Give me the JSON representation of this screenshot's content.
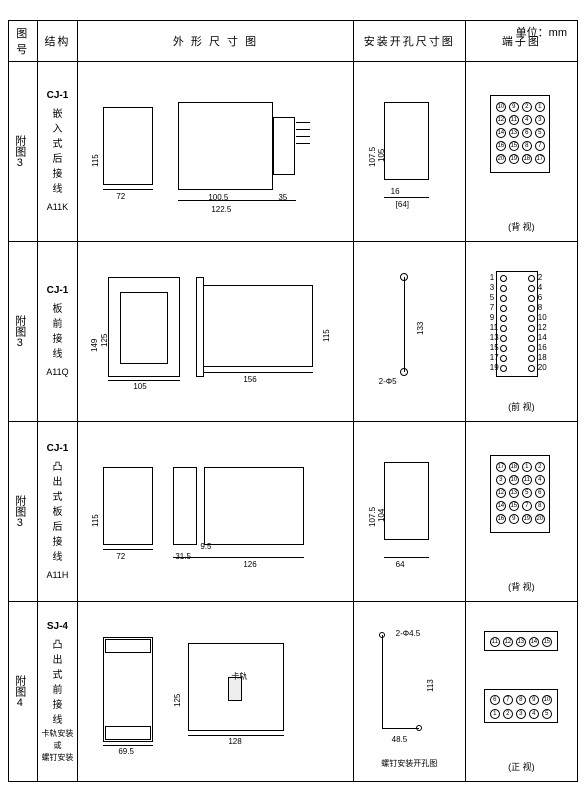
{
  "unit_text": "单位：mm",
  "headers": {
    "fig_no": "图号",
    "structure": "结构",
    "outline": "外 形 尺 寸 图",
    "mounting": "安装开孔尺寸图",
    "terminal": "端子图"
  },
  "rows": [
    {
      "fig_no": "附图3",
      "model_id": "CJ-1",
      "desc_lines": [
        "嵌",
        "入",
        "式",
        "后",
        "接",
        "线"
      ],
      "model_code": "A11K",
      "outline_dims": {
        "front_h": "115",
        "front_w": "72",
        "side_w1": "100.5",
        "side_w2": "122.5",
        "side_tail": "35"
      },
      "mount_dims": {
        "h1": "107.5",
        "h2": "105",
        "w1": "16",
        "w2": "[64]"
      },
      "terminal": {
        "view": "(背 视)",
        "circles": [
          "10",
          "9",
          "2",
          "1",
          "12",
          "11",
          "4",
          "3",
          "14",
          "13",
          "6",
          "5",
          "16",
          "15",
          "8",
          "7",
          "20",
          "19",
          "18",
          "17"
        ]
      }
    },
    {
      "fig_no": "附图3",
      "model_id": "CJ-1",
      "desc_lines": [
        "板",
        "前",
        "接",
        "线"
      ],
      "model_code": "A11Q",
      "outline_dims": {
        "front_h1": "149",
        "front_h2": "125",
        "front_w": "105",
        "side_w": "156",
        "side_h": "115"
      },
      "mount_dims": {
        "h": "133",
        "hole": "2-Φ5"
      },
      "terminal": {
        "view": "(前 视)",
        "labels": [
          "1",
          "2",
          "3",
          "4",
          "5",
          "6",
          "7",
          "8",
          "9",
          "10",
          "11",
          "12",
          "13",
          "14",
          "15",
          "16",
          "17",
          "18",
          "19",
          "20"
        ]
      }
    },
    {
      "fig_no": "附图3",
      "model_id": "CJ-1",
      "desc_lines": [
        "凸",
        "出",
        "式",
        "板",
        "后",
        "接",
        "线"
      ],
      "model_code": "A11H",
      "outline_dims": {
        "front_h": "115",
        "front_w": "72",
        "mid": "31.5",
        "gap": "9.5",
        "side_w": "126"
      },
      "mount_dims": {
        "h1": "107.5",
        "h2": "104",
        "w": "64"
      },
      "terminal": {
        "view": "(背 视)",
        "circles": [
          "17",
          "18",
          "1",
          "2",
          "3",
          "10",
          "11",
          "4",
          "12",
          "13",
          "5",
          "6",
          "14",
          "15",
          "7",
          "8",
          "16",
          "9",
          "19",
          "20"
        ]
      }
    },
    {
      "fig_no": "附图4",
      "model_id": "SJ-4",
      "desc_lines": [
        "凸",
        "出",
        "式",
        "前",
        "接",
        "线"
      ],
      "model_code": "卡轨安装 或 螺钉安装",
      "outline_dims": {
        "front_w": "69.5",
        "front_h": "125",
        "side_w": "128",
        "label": "卡轨"
      },
      "mount_dims": {
        "h": "113",
        "w": "48.5",
        "hole": "2-Φ4.5",
        "caption": "螺钉安装开孔图"
      },
      "terminal": {
        "view": "(正 视)",
        "top_row": [
          "11",
          "12",
          "13",
          "14",
          "15"
        ],
        "bot_rows": [
          [
            "6",
            "7",
            "8",
            "9",
            "10"
          ],
          [
            "1",
            "2",
            "3",
            "4",
            "5"
          ]
        ]
      }
    }
  ]
}
